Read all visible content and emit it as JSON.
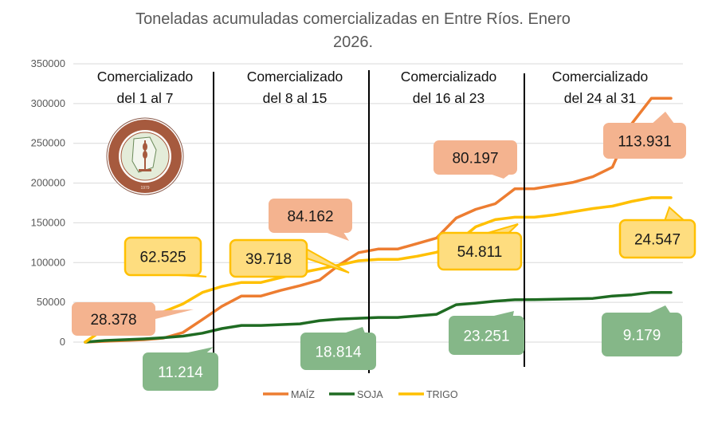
{
  "chart_data": {
    "type": "line",
    "title": "Toneladas acumuladas comercializadas en Entre Ríos. Enero 2026.",
    "title_lines": [
      "Toneladas acumuladas comercializadas en Entre Ríos. Enero",
      "2026."
    ],
    "xlabel": "",
    "ylabel": "",
    "ylim": [
      0,
      350000
    ],
    "yticks": [
      "0",
      "50000",
      "100000",
      "150000",
      "200000",
      "250000",
      "300000",
      "350000"
    ],
    "x": [
      1,
      2,
      3,
      4,
      5,
      6,
      7,
      8,
      9,
      10,
      11,
      12,
      13,
      14,
      15,
      16,
      17,
      18,
      19,
      20,
      21,
      22,
      23,
      24,
      25,
      26,
      27,
      28,
      29,
      30,
      31
    ],
    "grid": true,
    "legend_position": "bottom",
    "series": [
      {
        "name": "MAÍZ",
        "color": "#ed7d31",
        "values": [
          0,
          1000,
          2000,
          3000,
          5000,
          12000,
          28378,
          45000,
          58000,
          58000,
          65000,
          71000,
          78000,
          97000,
          112540,
          117000,
          117000,
          124000,
          131000,
          156000,
          167000,
          174000,
          192737,
          193000,
          197000,
          201000,
          208000,
          220000,
          275000,
          306668,
          306668
        ]
      },
      {
        "name": "SOJA",
        "color": "#1f6b22",
        "values": [
          0,
          2000,
          3000,
          4000,
          5500,
          7500,
          11214,
          17000,
          21000,
          21000,
          22000,
          23000,
          27000,
          29000,
          30028,
          31000,
          31000,
          33000,
          35000,
          47000,
          49000,
          51500,
          53279,
          53500,
          54000,
          54500,
          55000,
          58000,
          59500,
          62458,
          62458
        ]
      },
      {
        "name": "TRIGO",
        "color": "#ffc000",
        "values": [
          0,
          17000,
          17000,
          27000,
          38000,
          48000,
          62525,
          70000,
          75000,
          75000,
          81000,
          87000,
          92000,
          97000,
          102243,
          104000,
          104000,
          108000,
          113000,
          125000,
          145000,
          154000,
          157054,
          157000,
          160000,
          164000,
          168000,
          171000,
          177000,
          181601,
          181601
        ]
      }
    ],
    "period_dividers_after_day": [
      7,
      15,
      23
    ],
    "sections": [
      {
        "line1": "Comercializado",
        "line2": "del 1 al 7"
      },
      {
        "line1": "Comercializado",
        "line2": "del 8 al 15"
      },
      {
        "line1": "Comercializado",
        "line2": "del 16 al 23"
      },
      {
        "line1": "Comercializado",
        "line2": "del 24 al 31"
      }
    ],
    "annotations": [
      {
        "series": "MAÍZ",
        "period": 1,
        "text": "28.378"
      },
      {
        "series": "TRIGO",
        "period": 1,
        "text": "62.525"
      },
      {
        "series": "SOJA",
        "period": 1,
        "text": "11.214"
      },
      {
        "series": "TRIGO",
        "period": 2,
        "text": "39.718"
      },
      {
        "series": "MAÍZ",
        "period": 2,
        "text": "84.162"
      },
      {
        "series": "SOJA",
        "period": 2,
        "text": "18.814"
      },
      {
        "series": "MAÍZ",
        "period": 3,
        "text": "80.197"
      },
      {
        "series": "TRIGO",
        "period": 3,
        "text": "54.811"
      },
      {
        "series": "SOJA",
        "period": 3,
        "text": "23.251"
      },
      {
        "series": "MAÍZ",
        "period": 4,
        "text": "113.931"
      },
      {
        "series": "TRIGO",
        "period": 4,
        "text": "24.547"
      },
      {
        "series": "SOJA",
        "period": 4,
        "text": "9.179"
      }
    ]
  },
  "logo": {
    "text": "BOLSA DE CEREALES DE ENTRE RÍOS",
    "year": "1979"
  }
}
